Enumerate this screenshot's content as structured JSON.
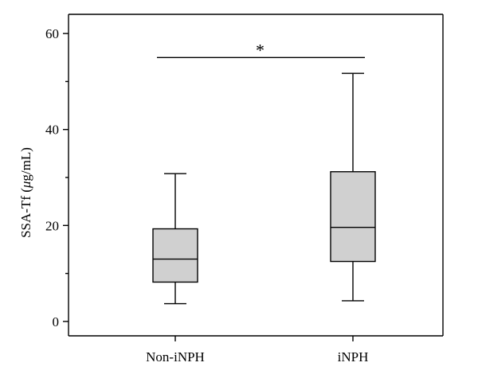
{
  "chart_data": {
    "type": "box",
    "categories": [
      "Non-iNPH",
      "iNPH"
    ],
    "boxes": [
      {
        "category": "Non-iNPH",
        "min": 3.7,
        "q1": 8.2,
        "median": 13.0,
        "q3": 19.3,
        "max": 30.8
      },
      {
        "category": "iNPH",
        "min": 4.3,
        "q1": 12.5,
        "median": 19.6,
        "q3": 31.2,
        "max": 51.7
      }
    ],
    "ylabel_prefix": "SSA-Tf (",
    "ylabel_mu": "μ",
    "ylabel_suffix": "g/mL)",
    "ylim": [
      -3,
      64
    ],
    "yticks": [
      0,
      20,
      40,
      60
    ],
    "ytick_labels": [
      "0",
      "20",
      "40",
      "60"
    ],
    "minor_yticks": [
      10,
      30,
      50
    ],
    "significance": {
      "label": "*",
      "between": [
        "Non-iNPH",
        "iNPH"
      ],
      "y": 55
    },
    "grid": false,
    "legend": "none",
    "colors": {
      "box_fill": "#d0d0d0",
      "line": "#000000"
    }
  }
}
